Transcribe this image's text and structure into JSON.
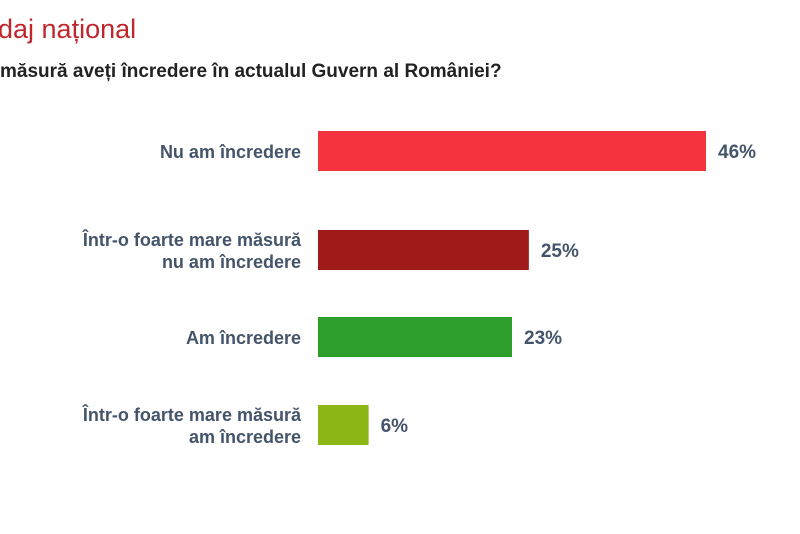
{
  "chart_data": {
    "type": "hbar",
    "title": "daj național",
    "subtitle": "măsură aveți încredere în actualul Guvern al României?",
    "categories": [
      [
        "Nu am încredere"
      ],
      [
        "Într-o foarte mare măsură",
        "nu am încredere"
      ],
      [
        "Am încredere"
      ],
      [
        "Într-o foarte mare măsură",
        "am încredere"
      ]
    ],
    "values": [
      46,
      25,
      23,
      6
    ],
    "value_labels": [
      "46%",
      "25%",
      "23%",
      "6%"
    ],
    "colors": [
      "#f5333f",
      "#a01a1a",
      "#2e9e2a",
      "#8db617"
    ]
  }
}
